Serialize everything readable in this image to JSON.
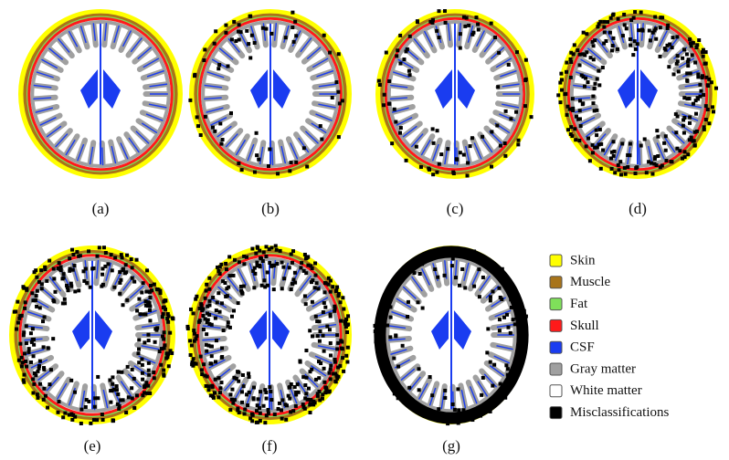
{
  "panels": [
    {
      "label": "(a)"
    },
    {
      "label": "(b)"
    },
    {
      "label": "(c)"
    },
    {
      "label": "(d)"
    },
    {
      "label": "(e)"
    },
    {
      "label": "(f)"
    },
    {
      "label": "(g)"
    }
  ],
  "legend": [
    {
      "label": "Skin",
      "color": "#ffff00"
    },
    {
      "label": "Muscle",
      "color": "#a8741a"
    },
    {
      "label": "Fat",
      "color": "#7fe05a"
    },
    {
      "label": "Skull",
      "color": "#ff1a1a"
    },
    {
      "label": "CSF",
      "color": "#1a3cf0"
    },
    {
      "label": "Gray matter",
      "color": "#a0a0a0"
    },
    {
      "label": "White matter",
      "color": "#ffffff"
    },
    {
      "label": "Misclassifications",
      "color": "#000000"
    }
  ]
}
